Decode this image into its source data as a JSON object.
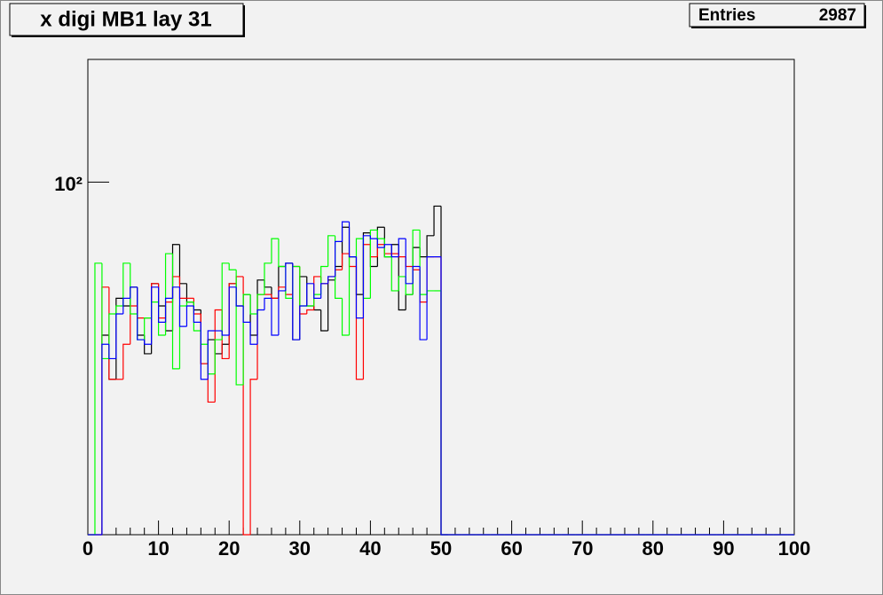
{
  "chart_data": {
    "type": "histogram",
    "title": "x digi MB1 lay 31",
    "stats": {
      "label": "Entries",
      "value": 2987
    },
    "log_y": true,
    "xlim": [
      0,
      100
    ],
    "xticks": [
      0,
      10,
      20,
      30,
      40,
      50,
      60,
      70,
      80,
      90,
      100
    ],
    "ylim": [
      21.2,
      171.6
    ],
    "yticks": [
      {
        "value": 100,
        "label": "10²"
      }
    ],
    "bins": [
      0,
      1,
      2,
      3,
      4,
      5,
      6,
      7,
      8,
      9,
      10,
      11,
      12,
      13,
      14,
      15,
      16,
      17,
      18,
      19,
      20,
      21,
      22,
      23,
      24,
      25,
      26,
      27,
      28,
      29,
      30,
      31,
      32,
      33,
      34,
      35,
      36,
      37,
      38,
      39,
      40,
      41,
      42,
      43,
      44,
      45,
      46,
      47,
      48,
      49,
      50,
      51,
      52,
      53,
      54,
      55,
      56,
      57,
      58,
      59,
      60,
      61,
      62,
      63,
      64,
      65,
      66,
      67,
      68,
      69,
      70,
      71,
      72,
      73,
      74,
      75,
      76,
      77,
      78,
      79,
      80,
      81,
      82,
      83,
      84,
      85,
      86,
      87,
      88,
      89,
      90,
      91,
      92,
      93,
      94,
      95,
      96,
      97,
      98,
      99,
      100
    ],
    "series": [
      {
        "color": "#000000",
        "values": [
          0,
          0,
          51,
          42,
          60,
          58,
          63,
          51,
          47,
          64,
          58,
          52,
          76,
          64,
          59,
          57,
          45,
          50,
          47,
          49,
          64,
          58,
          61,
          51,
          65,
          63,
          60,
          69,
          70,
          50,
          66,
          58,
          57,
          52,
          65,
          69,
          82,
          72,
          61,
          80,
          69,
          82,
          72,
          76,
          57,
          61,
          75,
          72,
          79,
          90,
          0,
          0,
          0,
          0,
          0,
          0,
          0,
          0,
          0,
          0,
          0,
          0,
          0,
          0,
          0,
          0,
          0,
          0,
          0,
          0,
          0,
          0,
          0,
          0,
          0,
          0,
          0,
          0,
          0,
          0,
          0,
          0,
          0,
          0,
          0,
          0,
          0,
          0,
          0,
          0,
          0,
          0,
          0,
          0,
          0,
          0,
          0,
          0,
          0,
          0
        ]
      },
      {
        "color": "#ff0000",
        "values": [
          0,
          0,
          63,
          42,
          42,
          49,
          58,
          55,
          55,
          64,
          55,
          59,
          66,
          60,
          60,
          56,
          45,
          38,
          57,
          46,
          64,
          66,
          0,
          42,
          61,
          61,
          60,
          63,
          61,
          69,
          56,
          57,
          66,
          64,
          66,
          68,
          73,
          69,
          42,
          76,
          72,
          76,
          73,
          73,
          72,
          69,
          68,
          59,
          72,
          72,
          0,
          0,
          0,
          0,
          0,
          0,
          0,
          0,
          0,
          0,
          0,
          0,
          0,
          0,
          0,
          0,
          0,
          0,
          0,
          0,
          0,
          0,
          0,
          0,
          0,
          0,
          0,
          0,
          0,
          0,
          0,
          0,
          0,
          0,
          0,
          0,
          0,
          0,
          0,
          0,
          0,
          0,
          0,
          0,
          0,
          0,
          0,
          0,
          0,
          0
        ]
      },
      {
        "color": "#00ff00",
        "values": [
          0,
          70,
          46,
          56,
          58,
          70,
          56,
          50,
          55,
          59,
          51,
          73,
          44,
          58,
          59,
          52,
          49,
          43,
          50,
          70,
          68,
          41,
          61,
          56,
          61,
          70,
          78,
          69,
          60,
          69,
          58,
          58,
          61,
          69,
          79,
          60,
          51,
          72,
          78,
          60,
          81,
          78,
          72,
          62,
          66,
          61,
          81,
          61,
          62,
          62,
          0,
          0,
          0,
          0,
          0,
          0,
          0,
          0,
          0,
          0,
          0,
          0,
          0,
          0,
          0,
          0,
          0,
          0,
          0,
          0,
          0,
          0,
          0,
          0,
          0,
          0,
          0,
          0,
          0,
          0,
          0,
          0,
          0,
          0,
          0,
          0,
          0,
          0,
          0,
          0,
          0,
          0,
          0,
          0,
          0,
          0,
          0,
          0,
          0,
          0
        ]
      },
      {
        "color": "#0000ff",
        "values": [
          0,
          0,
          49,
          46,
          56,
          60,
          63,
          50,
          49,
          63,
          54,
          60,
          63,
          53,
          58,
          54,
          42,
          52,
          52,
          51,
          63,
          58,
          54,
          49,
          57,
          60,
          51,
          62,
          70,
          50,
          58,
          64,
          60,
          64,
          66,
          77,
          84,
          72,
          55,
          79,
          78,
          75,
          76,
          72,
          78,
          64,
          69,
          50,
          72,
          72,
          0,
          0,
          0,
          0,
          0,
          0,
          0,
          0,
          0,
          0,
          0,
          0,
          0,
          0,
          0,
          0,
          0,
          0,
          0,
          0,
          0,
          0,
          0,
          0,
          0,
          0,
          0,
          0,
          0,
          0,
          0,
          0,
          0,
          0,
          0,
          0,
          0,
          0,
          0,
          0,
          0,
          0,
          0,
          0,
          0,
          0,
          0,
          0,
          0,
          0
        ]
      }
    ]
  }
}
